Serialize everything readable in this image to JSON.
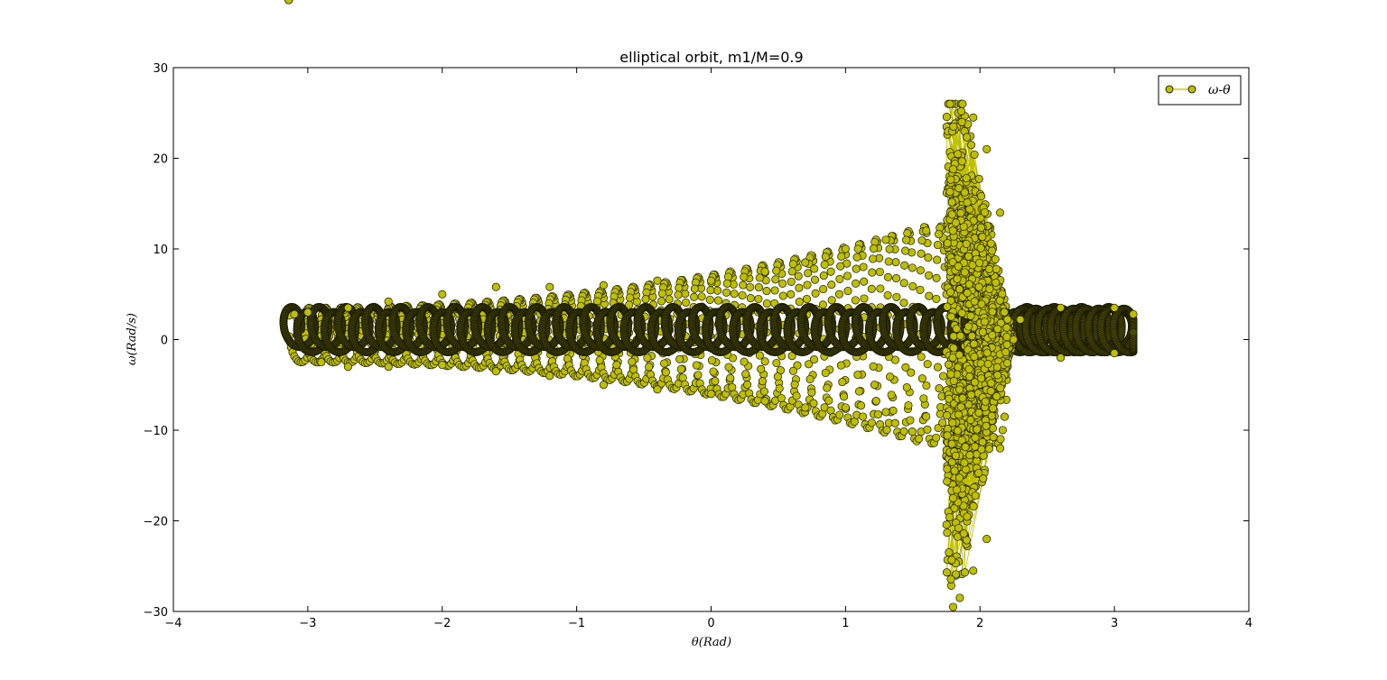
{
  "chart_data": {
    "type": "scatter",
    "title": "elliptical orbit, m1/M=0.9",
    "xlabel": "θ(Rad)",
    "ylabel": "ω(Rad/s)",
    "xlim": [
      -4,
      4
    ],
    "ylim": [
      -30,
      30
    ],
    "xticks": [
      -4,
      -3,
      -2,
      -1,
      0,
      1,
      2,
      3,
      4
    ],
    "yticks": [
      -30,
      -20,
      -10,
      0,
      10,
      20,
      30
    ],
    "xtick_labels": [
      "−4",
      "−3",
      "−2",
      "−1",
      "0",
      "1",
      "2",
      "3",
      "4"
    ],
    "ytick_labels": [
      "−30",
      "−20",
      "−10",
      "0",
      "10",
      "20",
      "30"
    ],
    "grid": false,
    "legend": {
      "location": "top-right",
      "entries": [
        "ω-θ"
      ]
    },
    "series": [
      {
        "name": "ω-θ",
        "marker": "circle",
        "line": true,
        "color": "#bfbf00",
        "points_sample": [
          [
            -3.1,
            2.8
          ],
          [
            -3.0,
            3.0
          ],
          [
            -2.9,
            -2.5
          ],
          [
            -2.7,
            3.5
          ],
          [
            -2.7,
            -3.0
          ],
          [
            -2.4,
            4.2
          ],
          [
            -2.4,
            -3.0
          ],
          [
            -2.0,
            5.0
          ],
          [
            -2.0,
            -2.8
          ],
          [
            -1.6,
            5.8
          ],
          [
            -1.6,
            -3.5
          ],
          [
            -1.2,
            5.8
          ],
          [
            -1.2,
            -4.0
          ],
          [
            -0.8,
            6.0
          ],
          [
            -0.8,
            -5.0
          ],
          [
            -0.4,
            6.5
          ],
          [
            -0.4,
            -5.5
          ],
          [
            0.0,
            6.5
          ],
          [
            0.0,
            -6.0
          ],
          [
            0.4,
            7.5
          ],
          [
            0.4,
            -6.8
          ],
          [
            0.7,
            8.5
          ],
          [
            0.7,
            -7.5
          ],
          [
            1.0,
            10.0
          ],
          [
            1.0,
            -7.5
          ],
          [
            1.3,
            11.0
          ],
          [
            1.3,
            -8.0
          ],
          [
            1.6,
            12.0
          ],
          [
            1.6,
            -8.5
          ],
          [
            1.8,
            18.8
          ],
          [
            1.87,
            26.0
          ],
          [
            1.95,
            24.5
          ],
          [
            2.05,
            21.0
          ],
          [
            2.15,
            14.0
          ],
          [
            1.8,
            -17.5
          ],
          [
            1.8,
            -29.5
          ],
          [
            1.85,
            -28.5
          ],
          [
            1.95,
            -25.5
          ],
          [
            2.05,
            -22.0
          ],
          [
            2.15,
            -12.0
          ],
          [
            2.3,
            2.2
          ],
          [
            2.6,
            3.5
          ],
          [
            2.6,
            -2.0
          ],
          [
            3.0,
            3.5
          ],
          [
            3.0,
            -1.5
          ],
          [
            3.14,
            2.8
          ]
        ]
      }
    ]
  }
}
